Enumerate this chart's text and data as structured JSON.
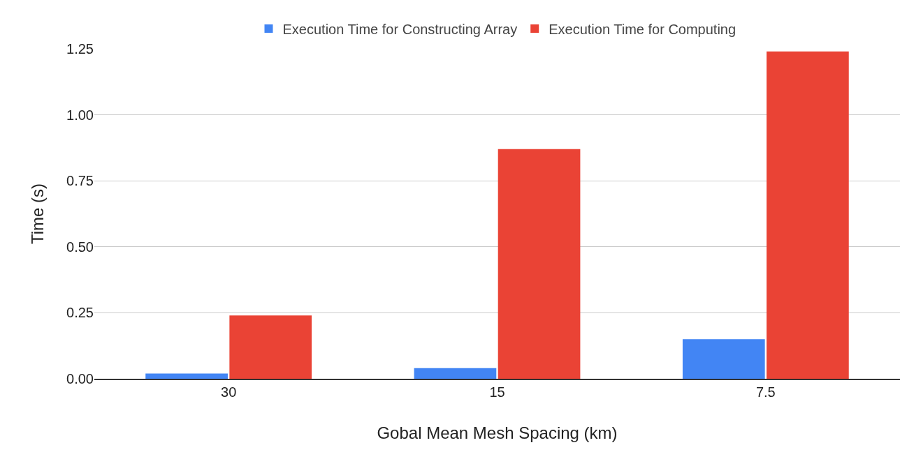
{
  "chart_data": {
    "type": "bar",
    "xlabel": "Gobal Mean Mesh Spacing (km)",
    "ylabel": "Time (s)",
    "categories": [
      "30",
      "15",
      "7.5"
    ],
    "series": [
      {
        "name": "Execution Time for Constructing Array",
        "color": "#4285f4",
        "values": [
          0.02,
          0.04,
          0.15
        ]
      },
      {
        "name": "Execution Time for Computing",
        "color": "#ea4335",
        "values": [
          0.24,
          0.87,
          1.24
        ]
      }
    ],
    "ylim": [
      0,
      1.25
    ],
    "yticks": [
      {
        "value": 0,
        "label": "0.00"
      },
      {
        "value": 0.25,
        "label": "0.25"
      },
      {
        "value": 0.5,
        "label": "0.50"
      },
      {
        "value": 0.75,
        "label": "0.75"
      },
      {
        "value": 1,
        "label": "1.00"
      },
      {
        "value": 1.25,
        "label": "1.25"
      }
    ],
    "grid": "y",
    "legend": "top"
  }
}
